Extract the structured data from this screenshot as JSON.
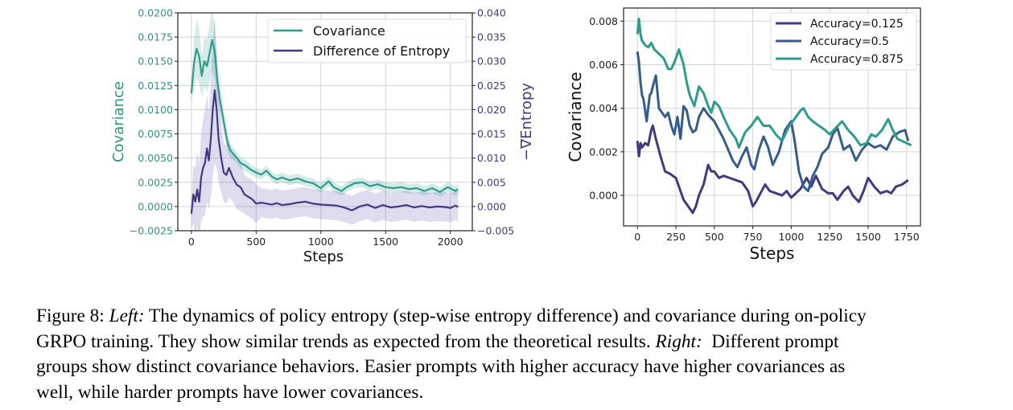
{
  "chart_data": [
    {
      "type": "line",
      "id": "left",
      "title": "",
      "xlabel": "Steps",
      "ylabel": "Covariance",
      "ylabel_right": "−∇Entropy",
      "xlim": [
        -105,
        2170
      ],
      "ylim": [
        -0.0025,
        0.02
      ],
      "ylim_right": [
        -0.005,
        0.04
      ],
      "xticks": [
        0,
        500,
        1000,
        1500,
        2000
      ],
      "xtick_labels": [
        "0",
        "500",
        "1000",
        "1500",
        "2000"
      ],
      "yticks": [
        -0.0025,
        0.0,
        0.0025,
        0.005,
        0.0075,
        0.01,
        0.0125,
        0.015,
        0.0175,
        0.02
      ],
      "ytick_labels": [
        "−0.0025",
        "0.0000",
        "0.0025",
        "0.0050",
        "0.0075",
        "0.0100",
        "0.0125",
        "0.0150",
        "0.0175",
        "0.0200"
      ],
      "yticks_right": [
        -0.005,
        0.0,
        0.005,
        0.01,
        0.015,
        0.02,
        0.025,
        0.03,
        0.035,
        0.04
      ],
      "ytick_labels_right": [
        "−0.005",
        "0.000",
        "0.005",
        "0.010",
        "0.015",
        "0.020",
        "0.025",
        "0.030",
        "0.035",
        "0.040"
      ],
      "grid": true,
      "legend_position": "top-right",
      "colors": {
        "left_axis": "#2e9486",
        "right_axis": "#46387f"
      },
      "series": [
        {
          "name": "Covariance",
          "axis": "left",
          "color": "#2e9c8a",
          "band_color": "#2e9c8a",
          "x": [
            0,
            20,
            40,
            60,
            80,
            100,
            120,
            140,
            160,
            180,
            200,
            220,
            240,
            260,
            280,
            300,
            340,
            380,
            420,
            460,
            500,
            540,
            580,
            620,
            660,
            700,
            760,
            820,
            880,
            940,
            1000,
            1060,
            1100,
            1160,
            1200,
            1260,
            1320,
            1380,
            1440,
            1500,
            1560,
            1620,
            1680,
            1740,
            1800,
            1860,
            1920,
            1980,
            2040,
            2060
          ],
          "y": [
            0.0117,
            0.0148,
            0.0163,
            0.0155,
            0.0135,
            0.015,
            0.0145,
            0.0158,
            0.0172,
            0.016,
            0.013,
            0.011,
            0.0095,
            0.008,
            0.0065,
            0.0058,
            0.0052,
            0.0045,
            0.0042,
            0.0038,
            0.0035,
            0.0033,
            0.0037,
            0.0031,
            0.0028,
            0.003,
            0.0027,
            0.0029,
            0.0026,
            0.0024,
            0.0019,
            0.0026,
            0.002,
            0.0016,
            0.002,
            0.0024,
            0.0025,
            0.0021,
            0.0023,
            0.002,
            0.0019,
            0.002,
            0.0018,
            0.0019,
            0.0016,
            0.0019,
            0.0015,
            0.002,
            0.0016,
            0.0018
          ],
          "band_halfwidth": [
            0.0008,
            0.0025,
            0.003,
            0.0028,
            0.0022,
            0.0025,
            0.0027,
            0.003,
            0.0032,
            0.0028,
            0.0022,
            0.0018,
            0.0014,
            0.0011,
            0.0009,
            0.0007,
            0.0006,
            0.0006,
            0.0006,
            0.0005,
            0.0005,
            0.0005,
            0.0005,
            0.0005,
            0.0005,
            0.0005,
            0.0005,
            0.0005,
            0.0005,
            0.0005,
            0.0005,
            0.0005,
            0.0005,
            0.0005,
            0.0005,
            0.0005,
            0.0005,
            0.0005,
            0.0005,
            0.0005,
            0.0005,
            0.0005,
            0.0005,
            0.0005,
            0.0005,
            0.0005,
            0.0005,
            0.0005,
            0.0005,
            0.0005
          ]
        },
        {
          "name": "Difference of Entropy",
          "axis": "right",
          "color": "#433983",
          "band_color": "#6b5fb0",
          "x": [
            0,
            15,
            30,
            45,
            60,
            75,
            90,
            105,
            120,
            135,
            150,
            165,
            180,
            195,
            210,
            230,
            250,
            270,
            290,
            320,
            350,
            380,
            410,
            440,
            470,
            500,
            540,
            580,
            620,
            660,
            700,
            760,
            820,
            880,
            940,
            1000,
            1060,
            1120,
            1180,
            1240,
            1300,
            1360,
            1420,
            1480,
            1540,
            1600,
            1660,
            1720,
            1780,
            1840,
            1900,
            1960,
            2000,
            2040,
            2060
          ],
          "y": [
            -0.0015,
            0.0025,
            0.001,
            0.0035,
            0.001,
            0.006,
            0.008,
            0.009,
            0.012,
            0.0095,
            0.014,
            0.02,
            0.024,
            0.02,
            0.014,
            0.01,
            0.007,
            0.0065,
            0.008,
            0.006,
            0.0045,
            0.004,
            0.0025,
            0.002,
            0.0015,
            0.0006,
            0.0008,
            0.0006,
            0.0004,
            0.0007,
            0.0003,
            0.0005,
            0.0008,
            0.001,
            0.0006,
            0.0004,
            0.0003,
            0.0002,
            -0.0002,
            -0.0008,
            0.0,
            0.0004,
            -0.0003,
            0.0003,
            -0.0002,
            0.0,
            0.0003,
            -0.0002,
            0.0001,
            -0.0002,
            0.0,
            -0.0001,
            -0.0003,
            0.0002,
            -0.0001
          ],
          "band_halfwidth": [
            0.003,
            0.006,
            0.007,
            0.008,
            0.008,
            0.009,
            0.01,
            0.011,
            0.011,
            0.01,
            0.012,
            0.014,
            0.015,
            0.012,
            0.009,
            0.007,
            0.006,
            0.006,
            0.006,
            0.005,
            0.005,
            0.005,
            0.004,
            0.004,
            0.004,
            0.004,
            0.003,
            0.003,
            0.003,
            0.003,
            0.003,
            0.003,
            0.003,
            0.003,
            0.003,
            0.003,
            0.003,
            0.003,
            0.003,
            0.003,
            0.003,
            0.003,
            0.003,
            0.003,
            0.003,
            0.003,
            0.003,
            0.003,
            0.003,
            0.003,
            0.003,
            0.003,
            0.003,
            0.003,
            0.003
          ]
        }
      ]
    },
    {
      "type": "line",
      "id": "right",
      "title": "",
      "xlabel": "Steps",
      "ylabel": "Covariance",
      "xlim": [
        -90,
        1840
      ],
      "ylim": [
        -0.0014,
        0.0086
      ],
      "xticks": [
        0,
        250,
        500,
        750,
        1000,
        1250,
        1500,
        1750
      ],
      "xtick_labels": [
        "0",
        "250",
        "500",
        "750",
        "1000",
        "1250",
        "1500",
        "1750"
      ],
      "yticks": [
        0.0,
        0.002,
        0.004,
        0.006,
        0.008
      ],
      "ytick_labels": [
        "0.000",
        "0.002",
        "0.004",
        "0.006",
        "0.008"
      ],
      "grid": true,
      "legend_position": "top-right",
      "series": [
        {
          "name": "Accuracy=0.125",
          "color": "#433983",
          "x": [
            0,
            10,
            20,
            30,
            50,
            70,
            90,
            100,
            120,
            150,
            180,
            210,
            250,
            280,
            300,
            330,
            360,
            380,
            400,
            430,
            460,
            480,
            500,
            530,
            560,
            600,
            640,
            680,
            720,
            750,
            770,
            800,
            830,
            860,
            900,
            940,
            970,
            1000,
            1030,
            1060,
            1100,
            1130,
            1160,
            1200,
            1240,
            1270,
            1300,
            1340,
            1370,
            1400,
            1440,
            1470,
            1500,
            1540,
            1580,
            1620,
            1650,
            1680,
            1720,
            1760
          ],
          "y": [
            0.0025,
            0.0018,
            0.0024,
            0.0022,
            0.0024,
            0.0023,
            0.003,
            0.0032,
            0.0026,
            0.0018,
            0.0011,
            0.001,
            0.0008,
            0.0002,
            -0.0002,
            -0.0005,
            -0.0008,
            -0.0005,
            0.0,
            0.0005,
            0.0014,
            0.0011,
            0.0011,
            0.0008,
            0.0009,
            0.0008,
            0.0007,
            0.0006,
            0.0002,
            -0.0005,
            -0.0003,
            0.0001,
            0.0005,
            0.0002,
            0.0001,
            0.0,
            0.0002,
            -0.0001,
            0.0001,
            0.0003,
            0.0008,
            0.0004,
            0.0009,
            0.0003,
            0.0001,
            0.0001,
            -0.0002,
            0.0002,
            0.0004,
            0.0,
            -0.0003,
            0.0002,
            0.0008,
            0.0004,
            0.0001,
            0.0002,
            0.0001,
            0.0004,
            0.0005,
            0.0007
          ]
        },
        {
          "name": "Accuracy=0.5",
          "color": "#365c8d",
          "x": [
            0,
            10,
            20,
            30,
            40,
            60,
            80,
            90,
            100,
            120,
            140,
            160,
            180,
            200,
            220,
            240,
            260,
            280,
            300,
            320,
            340,
            360,
            380,
            400,
            430,
            460,
            500,
            530,
            560,
            590,
            620,
            650,
            680,
            710,
            740,
            760,
            790,
            820,
            850,
            880,
            920,
            960,
            1000,
            1020,
            1050,
            1080,
            1110,
            1140,
            1170,
            1200,
            1240,
            1270,
            1300,
            1340,
            1380,
            1420,
            1460,
            1500,
            1540,
            1580,
            1620,
            1660,
            1700,
            1740,
            1760
          ],
          "y": [
            0.0066,
            0.0061,
            0.0052,
            0.0046,
            0.0044,
            0.0034,
            0.0046,
            0.0047,
            0.005,
            0.0055,
            0.004,
            0.0038,
            0.0036,
            0.0038,
            0.0032,
            0.0028,
            0.0036,
            0.0026,
            0.0041,
            0.0039,
            0.0032,
            0.0029,
            0.003,
            0.0036,
            0.004,
            0.0037,
            0.0034,
            0.003,
            0.0026,
            0.0021,
            0.0016,
            0.0013,
            0.0018,
            0.0022,
            0.0014,
            0.0012,
            0.0021,
            0.0027,
            0.0022,
            0.0014,
            0.002,
            0.003,
            0.0034,
            0.0026,
            0.0011,
            0.0004,
            0.0002,
            0.0009,
            0.0013,
            0.0019,
            0.0022,
            0.0028,
            0.0031,
            0.0021,
            0.0023,
            0.0016,
            0.0021,
            0.0024,
            0.0022,
            0.0023,
            0.0021,
            0.0027,
            0.0029,
            0.003,
            0.0025
          ]
        },
        {
          "name": "Accuracy=0.875",
          "color": "#2e9c8a",
          "x": [
            0,
            10,
            20,
            30,
            50,
            70,
            90,
            110,
            140,
            170,
            200,
            220,
            240,
            270,
            300,
            320,
            340,
            370,
            400,
            430,
            460,
            480,
            500,
            530,
            560,
            600,
            640,
            660,
            700,
            740,
            780,
            820,
            860,
            900,
            940,
            980,
            1020,
            1060,
            1080,
            1110,
            1140,
            1180,
            1220,
            1250,
            1290,
            1330,
            1370,
            1410,
            1450,
            1490,
            1520,
            1550,
            1590,
            1630,
            1660,
            1690,
            1720,
            1750,
            1780
          ],
          "y": [
            0.0074,
            0.0081,
            0.0074,
            0.0071,
            0.0069,
            0.0068,
            0.007,
            0.0067,
            0.0065,
            0.0063,
            0.0058,
            0.0058,
            0.0061,
            0.0067,
            0.006,
            0.0052,
            0.0046,
            0.0041,
            0.005,
            0.0047,
            0.0041,
            0.0038,
            0.0043,
            0.0041,
            0.0036,
            0.003,
            0.0026,
            0.0022,
            0.0029,
            0.0032,
            0.0036,
            0.0032,
            0.0032,
            0.0028,
            0.0025,
            0.0031,
            0.0035,
            0.0039,
            0.004,
            0.0036,
            0.0034,
            0.0032,
            0.003,
            0.0028,
            0.0031,
            0.0034,
            0.003,
            0.0027,
            0.0023,
            0.0024,
            0.0028,
            0.0027,
            0.003,
            0.0035,
            0.003,
            0.0026,
            0.0025,
            0.0024,
            0.0023
          ]
        }
      ]
    }
  ],
  "caption": {
    "lines": [
      [
        {
          "t": "Figure 8: ",
          "i": false
        },
        {
          "t": "Left:",
          "i": true
        },
        {
          "t": " The dynamics of policy entropy (step-wise entropy difference) and covariance during on-policy",
          "i": false
        }
      ],
      [
        {
          "t": "GRPO training. They show similar trends as expected from the theoretical results. ",
          "i": false
        },
        {
          "t": "Right:",
          "i": true
        },
        {
          "t": "  Different prompt",
          "i": false
        }
      ],
      [
        {
          "t": "groups show distinct covariance behaviors. Easier prompts with higher accuracy have higher covariances as",
          "i": false
        }
      ],
      [
        {
          "t": "well, while harder prompts have lower covariances.",
          "i": false
        }
      ]
    ]
  }
}
